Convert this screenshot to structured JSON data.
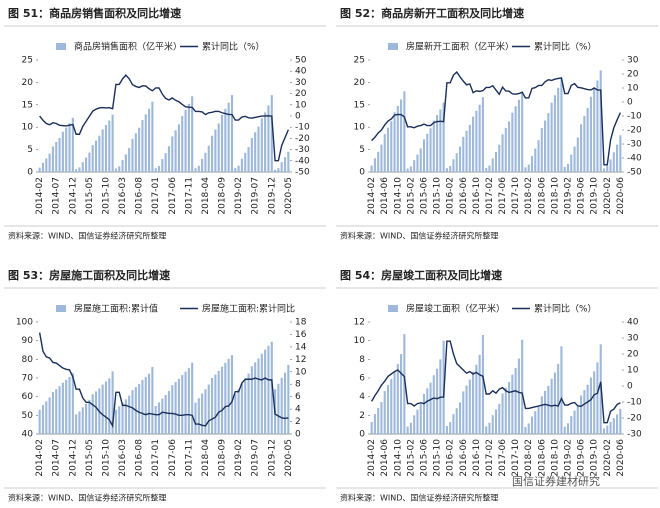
{
  "chart_data": [
    {
      "type": "combo",
      "title": "图 51：商品房销售面积及同比增速",
      "source": "资料来源：WIND、国信证券经济研究所整理",
      "categories": [
        "2014-02",
        null,
        null,
        null,
        null,
        "2014-07",
        null,
        null,
        null,
        null,
        "2014-12",
        null,
        null,
        null,
        null,
        "2015-05",
        null,
        null,
        null,
        null,
        "2015-10",
        null,
        null,
        null,
        null,
        "2016-03",
        null,
        null,
        null,
        null,
        "2016-08",
        null,
        null,
        null,
        null,
        "2017-01",
        null,
        null,
        null,
        null,
        "2017-06",
        null,
        null,
        null,
        null,
        "2017-11",
        null,
        null,
        null,
        null,
        "2018-04",
        null,
        null,
        null,
        null,
        "2018-09",
        null,
        null,
        null,
        null,
        "2019-02",
        null,
        null,
        null,
        null,
        "2019-07",
        null,
        null,
        null,
        null,
        "2019-12",
        null,
        null,
        null,
        null,
        "2020-05"
      ],
      "series": [
        {
          "name": "商品房销售面积（亿平米）",
          "type": "bar",
          "color": "#9db8da",
          "values": [
            0.97,
            2.06,
            3.0,
            4.1,
            5.7,
            6.7,
            7.6,
            9.0,
            9.9,
            10.9,
            12.1,
            0.64,
            1.02,
            2.18,
            3.2,
            4.35,
            6.0,
            7.0,
            8.1,
            9.5,
            10.5,
            11.5,
            12.8,
            0.79,
            1.26,
            2.67,
            3.93,
            5.34,
            7.38,
            8.64,
            9.89,
            11.62,
            12.87,
            14.13,
            15.7,
            0.85,
            1.35,
            2.87,
            4.23,
            5.75,
            7.94,
            9.3,
            10.65,
            12.51,
            13.86,
            15.21,
            16.9,
            0.86,
            1.38,
            2.92,
            4.3,
            5.85,
            8.08,
            9.46,
            10.84,
            12.73,
            14.1,
            15.48,
            17.2,
            0.86,
            1.4,
            2.98,
            4.27,
            5.56,
            7.57,
            8.87,
            10.13,
            11.99,
            13.3,
            14.88,
            17.16,
            0.5,
            0.85,
            2.2,
            3.3,
            4.5
          ]
        },
        {
          "name": "累计同比（%）",
          "type": "line",
          "axis": "y2",
          "color": "#1a2f5a",
          "values": [
            -0.1,
            -3.8,
            -6.7,
            -7.8,
            -6.0,
            -6.7,
            -8.3,
            -8.6,
            -8.9,
            -8.2,
            -7.6,
            -16.3,
            -16.3,
            -9.2,
            -4.8,
            -0.2,
            4.3,
            6.1,
            7.2,
            7.5,
            7.2,
            7.4,
            6.5,
            28.2,
            28.2,
            33.1,
            36.5,
            33.2,
            27.9,
            26.4,
            25.5,
            26.9,
            26.8,
            24.3,
            22.5,
            25.1,
            25.1,
            19.5,
            15.7,
            14.3,
            16.1,
            14.0,
            12.7,
            10.3,
            8.2,
            7.9,
            7.7,
            4.1,
            4.1,
            3.6,
            1.3,
            2.9,
            3.3,
            4.2,
            4.1,
            2.9,
            2.2,
            1.4,
            1.3,
            -3.6,
            -3.6,
            -0.9,
            -0.3,
            -1.6,
            -1.8,
            -1.3,
            -0.6,
            -0.1,
            0.1,
            0.2,
            -0.1,
            -39.9,
            -39.9,
            -26.3,
            -19.3,
            -12.3
          ]
        }
      ],
      "ylim": [
        0,
        25
      ],
      "yticks": [
        0,
        5,
        10,
        15,
        20,
        25
      ],
      "y2lim": [
        -50,
        50
      ],
      "y2ticks": [
        -50,
        -40,
        -30,
        -20,
        -10,
        0,
        10,
        20,
        30,
        40,
        50
      ]
    },
    {
      "type": "combo",
      "title": "图 52：商品房新开工面积及同比增速",
      "source": "资料来源：WIND、国信证券经济研究所整理",
      "categories": [
        "2014-02",
        null,
        null,
        null,
        "2014-06",
        null,
        null,
        null,
        "2014-10",
        null,
        null,
        null,
        "2015-02",
        null,
        null,
        null,
        "2015-06",
        null,
        null,
        null,
        "2015-10",
        null,
        null,
        null,
        "2016-02",
        null,
        null,
        null,
        "2016-06",
        null,
        null,
        null,
        "2016-10",
        null,
        null,
        null,
        "2017-02",
        null,
        null,
        null,
        "2017-06",
        null,
        null,
        null,
        "2017-10",
        null,
        null,
        null,
        "2018-02",
        null,
        null,
        null,
        "2018-06",
        null,
        null,
        null,
        "2018-10",
        null,
        null,
        null,
        "2019-02",
        null,
        null,
        null,
        "2019-06",
        null,
        null,
        null,
        "2019-10",
        null,
        null,
        null,
        "2020-02",
        null,
        null,
        null,
        "2020-06"
      ],
      "series": [
        {
          "name": "房屋新开工面积（亿平米）",
          "type": "bar",
          "color": "#9db8da",
          "values": [
            1.44,
            3.06,
            4.5,
            6.12,
            8.46,
            9.9,
            11.34,
            13.32,
            14.76,
            16.2,
            18.0,
            0.78,
            1.24,
            2.64,
            3.88,
            5.27,
            7.29,
            8.53,
            9.77,
            11.47,
            12.71,
            13.95,
            15.5,
            0.84,
            1.34,
            2.84,
            4.18,
            5.68,
            7.85,
            9.19,
            10.52,
            12.36,
            13.69,
            15.03,
            16.7,
            0.9,
            1.43,
            3.04,
            4.48,
            6.09,
            8.41,
            9.85,
            11.28,
            13.25,
            14.68,
            16.11,
            17.9,
            1.05,
            1.67,
            3.55,
            5.23,
            7.11,
            9.82,
            11.5,
            13.17,
            15.47,
            17.14,
            18.81,
            20.9,
            1.14,
            1.82,
            3.86,
            5.68,
            7.72,
            10.67,
            12.49,
            14.3,
            16.8,
            18.61,
            20.43,
            22.7,
            0.8,
            1.4,
            2.8,
            4.4,
            6.1,
            8.2
          ]
        },
        {
          "name": "累计同比（%）",
          "type": "line",
          "axis": "y2",
          "color": "#1a2f5a",
          "values": [
            -27.6,
            -25.2,
            -22.1,
            -20.0,
            -16.4,
            -13.6,
            -12.1,
            -9.3,
            -8.9,
            -9.0,
            -10.7,
            -17.7,
            -17.7,
            -18.4,
            -17.3,
            -16.8,
            -15.8,
            -16.8,
            -16.8,
            -14.7,
            -14.0,
            -13.8,
            -14.0,
            13.7,
            13.7,
            19.2,
            21.4,
            18.0,
            14.9,
            12.3,
            12.9,
            6.7,
            8.0,
            7.6,
            8.1,
            10.4,
            10.4,
            11.6,
            8.5,
            5.5,
            10.6,
            7.9,
            7.7,
            5.8,
            5.6,
            6.0,
            7.0,
            2.9,
            2.9,
            9.7,
            10.3,
            11.8,
            11.8,
            14.4,
            15.9,
            15.4,
            16.3,
            16.8,
            17.2,
            6.0,
            6.0,
            11.9,
            13.1,
            10.5,
            10.1,
            9.5,
            8.9,
            8.6,
            10.0,
            8.6,
            8.5,
            -44.9,
            -44.9,
            -27.2,
            -18.4,
            -12.8,
            -7.6
          ]
        }
      ],
      "ylim": [
        0,
        25
      ],
      "yticks": [
        0,
        5,
        10,
        15,
        20,
        25
      ],
      "y2lim": [
        -50,
        30
      ],
      "y2ticks": [
        -50,
        -40,
        -30,
        -20,
        -10,
        0,
        10,
        20,
        30
      ]
    },
    {
      "type": "combo",
      "title": "图 53：房屋施工面积及同比增速",
      "source": "资料来源：WIND、国信证券经济研究所整理",
      "categories": [
        "2014-02",
        null,
        null,
        null,
        null,
        "2014-07",
        null,
        null,
        null,
        null,
        "2014-12",
        null,
        null,
        null,
        null,
        "2015-05",
        null,
        null,
        null,
        null,
        "2015-10",
        null,
        null,
        null,
        null,
        "2016-03",
        null,
        null,
        null,
        null,
        "2016-08",
        null,
        null,
        null,
        null,
        "2017-01",
        null,
        null,
        null,
        null,
        "2017-06",
        null,
        null,
        null,
        null,
        "2017-11",
        null,
        null,
        null,
        null,
        "2018-04",
        null,
        null,
        null,
        null,
        "2018-09",
        null,
        null,
        null,
        null,
        "2019-02",
        null,
        null,
        null,
        null,
        "2019-07",
        null,
        null,
        null,
        null,
        "2019-12",
        null,
        null,
        null,
        null,
        "2020-05"
      ],
      "series": [
        {
          "name": "房屋施工面积:累计值",
          "type": "bar",
          "color": "#9db8da",
          "values": [
            53.0,
            55.5,
            57.5,
            59.6,
            62.5,
            64.0,
            65.6,
            67.5,
            69.0,
            70.6,
            72.6,
            50.5,
            52.1,
            54.3,
            56.2,
            58.3,
            61.3,
            62.8,
            64.4,
            66.5,
            68.1,
            69.8,
            73.6,
            53.0,
            54.8,
            56.8,
            58.6,
            60.6,
            63.5,
            65.1,
            66.8,
            68.9,
            70.6,
            72.3,
            75.9,
            55.0,
            56.9,
            59.0,
            60.9,
            63.0,
            66.1,
            67.8,
            69.5,
            71.6,
            73.4,
            75.3,
            78.2,
            56.8,
            59.1,
            61.7,
            64.0,
            66.5,
            70.0,
            71.8,
            73.8,
            76.0,
            78.1,
            80.3,
            82.2,
            61.5,
            63.9,
            67.0,
            69.6,
            72.4,
            76.3,
            78.4,
            80.5,
            83.0,
            85.2,
            87.3,
            89.4,
            64.0,
            66.9,
            70.1,
            72.9,
            77.0
          ]
        },
        {
          "name": "房屋施工面积:累计同比",
          "type": "line",
          "axis": "y2",
          "color": "#1a2f5a",
          "values": [
            16.3,
            13.3,
            12.4,
            12.2,
            11.5,
            11.4,
            11.0,
            10.6,
            10.4,
            10.3,
            9.2,
            7.2,
            7.2,
            5.8,
            5.1,
            5.1,
            4.7,
            4.3,
            3.6,
            3.1,
            2.7,
            2.3,
            1.3,
            6.7,
            6.7,
            4.6,
            4.6,
            4.4,
            4.2,
            3.8,
            3.5,
            3.3,
            3.1,
            3.3,
            3.2,
            3.1,
            3.1,
            3.5,
            3.4,
            3.3,
            3.3,
            3.2,
            3.0,
            3.0,
            3.1,
            3.1,
            3.0,
            1.6,
            1.6,
            1.4,
            1.3,
            2.1,
            2.4,
            2.7,
            3.5,
            3.8,
            4.4,
            4.5,
            5.2,
            6.8,
            6.8,
            8.2,
            8.8,
            8.8,
            8.8,
            9.0,
            8.8,
            8.7,
            9.0,
            8.7,
            8.7,
            3.2,
            2.9,
            2.6,
            2.5,
            2.6
          ]
        }
      ],
      "ylim": [
        40,
        100
      ],
      "yticks": [
        40,
        50,
        60,
        70,
        80,
        90,
        100
      ],
      "y2lim": [
        0,
        18
      ],
      "y2ticks": [
        0,
        2,
        4,
        6,
        8,
        10,
        12,
        14,
        16,
        18
      ]
    },
    {
      "type": "combo",
      "title": "图 54：房屋竣工面积及同比增速",
      "source": "资料来源：WIND、国信证券经济研究所整理",
      "categories": [
        "2014-02",
        null,
        null,
        null,
        "2014-06",
        null,
        null,
        null,
        "2014-10",
        null,
        null,
        null,
        "2015-02",
        null,
        null,
        null,
        "2015-06",
        null,
        null,
        null,
        "2015-10",
        null,
        null,
        null,
        "2016-02",
        null,
        null,
        null,
        "2016-06",
        null,
        null,
        null,
        "2016-10",
        null,
        null,
        null,
        "2017-02",
        null,
        null,
        null,
        "2017-06",
        null,
        null,
        null,
        "2017-10",
        null,
        null,
        null,
        "2018-02",
        null,
        null,
        null,
        "2018-06",
        null,
        null,
        null,
        "2018-10",
        null,
        null,
        null,
        "2019-02",
        null,
        null,
        null,
        "2019-06",
        null,
        null,
        null,
        "2019-10",
        null,
        null,
        null,
        "2020-02",
        null,
        null,
        null,
        "2020-06"
      ],
      "series": [
        {
          "name": "房屋竣工面积（亿平米）",
          "type": "bar",
          "color": "#9db8da",
          "values": [
            1.28,
            2.14,
            2.78,
            3.42,
            4.6,
            5.24,
            5.89,
            6.74,
            7.49,
            8.56,
            10.7,
            0.8,
            1.2,
            2.0,
            2.6,
            3.2,
            4.3,
            4.9,
            5.5,
            6.3,
            7.0,
            8.0,
            10.0,
            0.85,
            1.27,
            2.12,
            2.76,
            3.39,
            4.56,
            5.19,
            5.83,
            6.68,
            7.42,
            8.48,
            10.6,
            0.81,
            1.21,
            2.02,
            2.63,
            3.23,
            4.34,
            4.95,
            5.56,
            6.36,
            7.07,
            8.08,
            10.1,
            0.75,
            1.13,
            1.88,
            2.44,
            3.01,
            4.04,
            4.61,
            5.17,
            5.92,
            6.58,
            7.52,
            9.4,
            0.77,
            1.15,
            1.92,
            2.5,
            3.07,
            4.13,
            4.7,
            5.28,
            6.05,
            6.72,
            7.68,
            9.6,
            0.6,
            0.9,
            1.3,
            1.7,
            2.1,
            2.7
          ]
        },
        {
          "name": "累计同比（%）",
          "type": "line",
          "axis": "y2",
          "color": "#1a2f5a",
          "values": [
            -9.6,
            -6.0,
            -3.0,
            0.5,
            3.0,
            6.0,
            7.5,
            9.0,
            10.0,
            8.0,
            5.9,
            -11.0,
            -11.0,
            -12.5,
            -11.0,
            -10.5,
            -11.0,
            -9.5,
            -8.5,
            -7.5,
            -8.0,
            -7.0,
            -6.9,
            28.0,
            28.0,
            20.0,
            14.0,
            12.0,
            10.0,
            8.0,
            9.0,
            7.5,
            8.5,
            7.0,
            6.1,
            -5.0,
            -5.0,
            -3.0,
            -4.5,
            -2.0,
            -1.0,
            -3.0,
            -4.0,
            -3.5,
            -3.0,
            -4.0,
            -4.4,
            -14.0,
            -14.0,
            -13.5,
            -13.0,
            -12.5,
            -12.0,
            -11.5,
            -12.0,
            -12.5,
            -12.0,
            -12.5,
            -7.8,
            -11.9,
            -11.9,
            -10.8,
            -10.3,
            -12.4,
            -12.7,
            -11.3,
            -10.0,
            -8.6,
            -5.5,
            -4.5,
            2.6,
            -22.9,
            -22.9,
            -15.8,
            -14.5,
            -11.6,
            -10.5
          ]
        }
      ],
      "ylim": [
        0,
        12
      ],
      "yticks": [
        0,
        2,
        4,
        6,
        8,
        10,
        12
      ],
      "y2lim": [
        -30,
        40
      ],
      "y2ticks": [
        -30,
        -20,
        -10,
        0,
        10,
        20,
        30,
        40
      ]
    }
  ],
  "watermark": "国信证券建材研究"
}
